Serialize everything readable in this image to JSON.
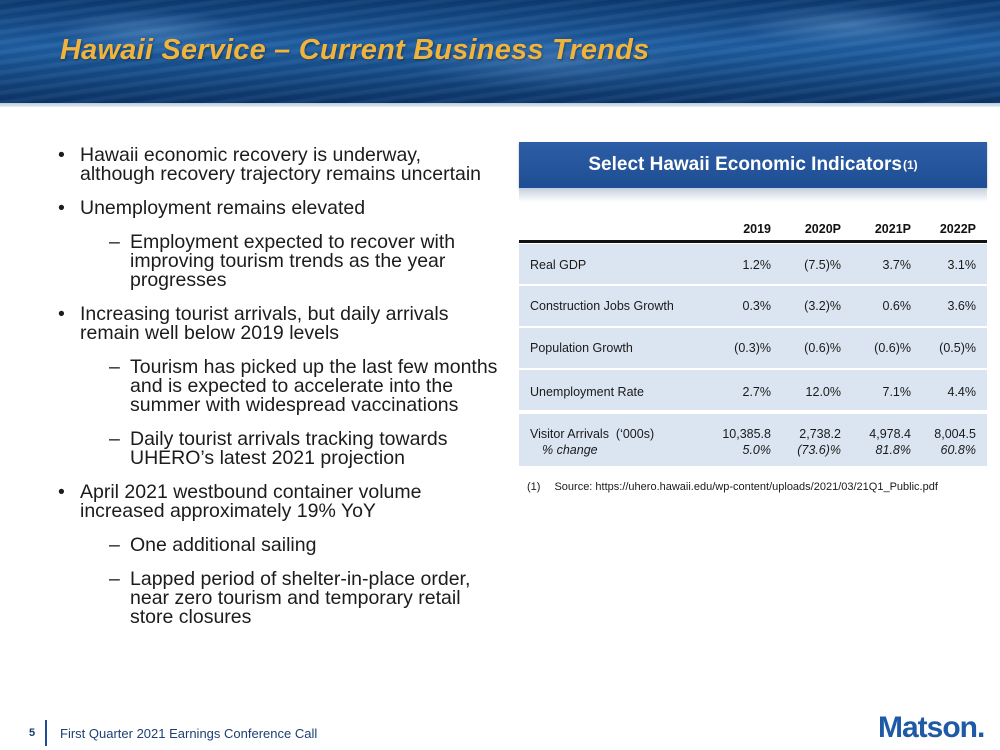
{
  "header": {
    "title": "Hawaii Service – Current Business Trends"
  },
  "bullets": [
    {
      "level": 1,
      "text": "Hawaii economic recovery is underway, although recovery trajectory remains uncertain"
    },
    {
      "level": 1,
      "text": "Unemployment remains elevated"
    },
    {
      "level": 2,
      "text": "Employment expected to recover with improving tourism trends as the year progresses"
    },
    {
      "level": 1,
      "text": "Increasing tourist arrivals, but daily arrivals remain well below 2019 levels"
    },
    {
      "level": 2,
      "text": "Tourism has picked up the last few months and is expected to accelerate into the summer with widespread vaccinations"
    },
    {
      "level": 2,
      "text": "Daily tourist arrivals tracking towards UHERO’s latest 2021 projection"
    },
    {
      "level": 1,
      "text": "April 2021 westbound container volume increased approximately 19% YoY"
    },
    {
      "level": 2,
      "text": "One additional sailing"
    },
    {
      "level": 2,
      "text": "Lapped period of shelter-in-place order, near zero tourism and temporary retail store closures"
    }
  ],
  "table": {
    "title": "Select Hawaii Economic Indicators",
    "title_note": "(1)",
    "columns": [
      "2019",
      "2020P",
      "2021P",
      "2022P"
    ],
    "rows": [
      {
        "label": "Real GDP",
        "values": [
          "1.2%",
          "(7.5)%",
          "3.7%",
          "3.1%"
        ]
      },
      {
        "label": "Construction Jobs Growth",
        "values": [
          "0.3%",
          "(3.2)%",
          "0.6%",
          "3.6%"
        ]
      },
      {
        "label": "Population Growth",
        "values": [
          "(0.3)%",
          "(0.6)%",
          "(0.6)%",
          "(0.5)%"
        ]
      },
      {
        "label": "Unemployment Rate",
        "values": [
          "2.7%",
          "12.0%",
          "7.1%",
          "4.4%"
        ]
      },
      {
        "label": "Visitor Arrivals  (‘000s)",
        "sublabel": "% change",
        "values": [
          "10,385.8",
          "2,738.2",
          "4,978.4",
          "8,004.5"
        ],
        "subvalues": [
          "5.0%",
          "(73.6)%",
          "81.8%",
          "60.8%"
        ]
      }
    ],
    "footnote": {
      "number": "(1)",
      "text": "Source: https://uhero.hawaii.edu/wp-content/uploads/2021/03/21Q1_Public.pdf"
    }
  },
  "footer": {
    "page_number": "5",
    "text": "First Quarter 2021 Earnings Conference Call",
    "logo": "Matson."
  }
}
